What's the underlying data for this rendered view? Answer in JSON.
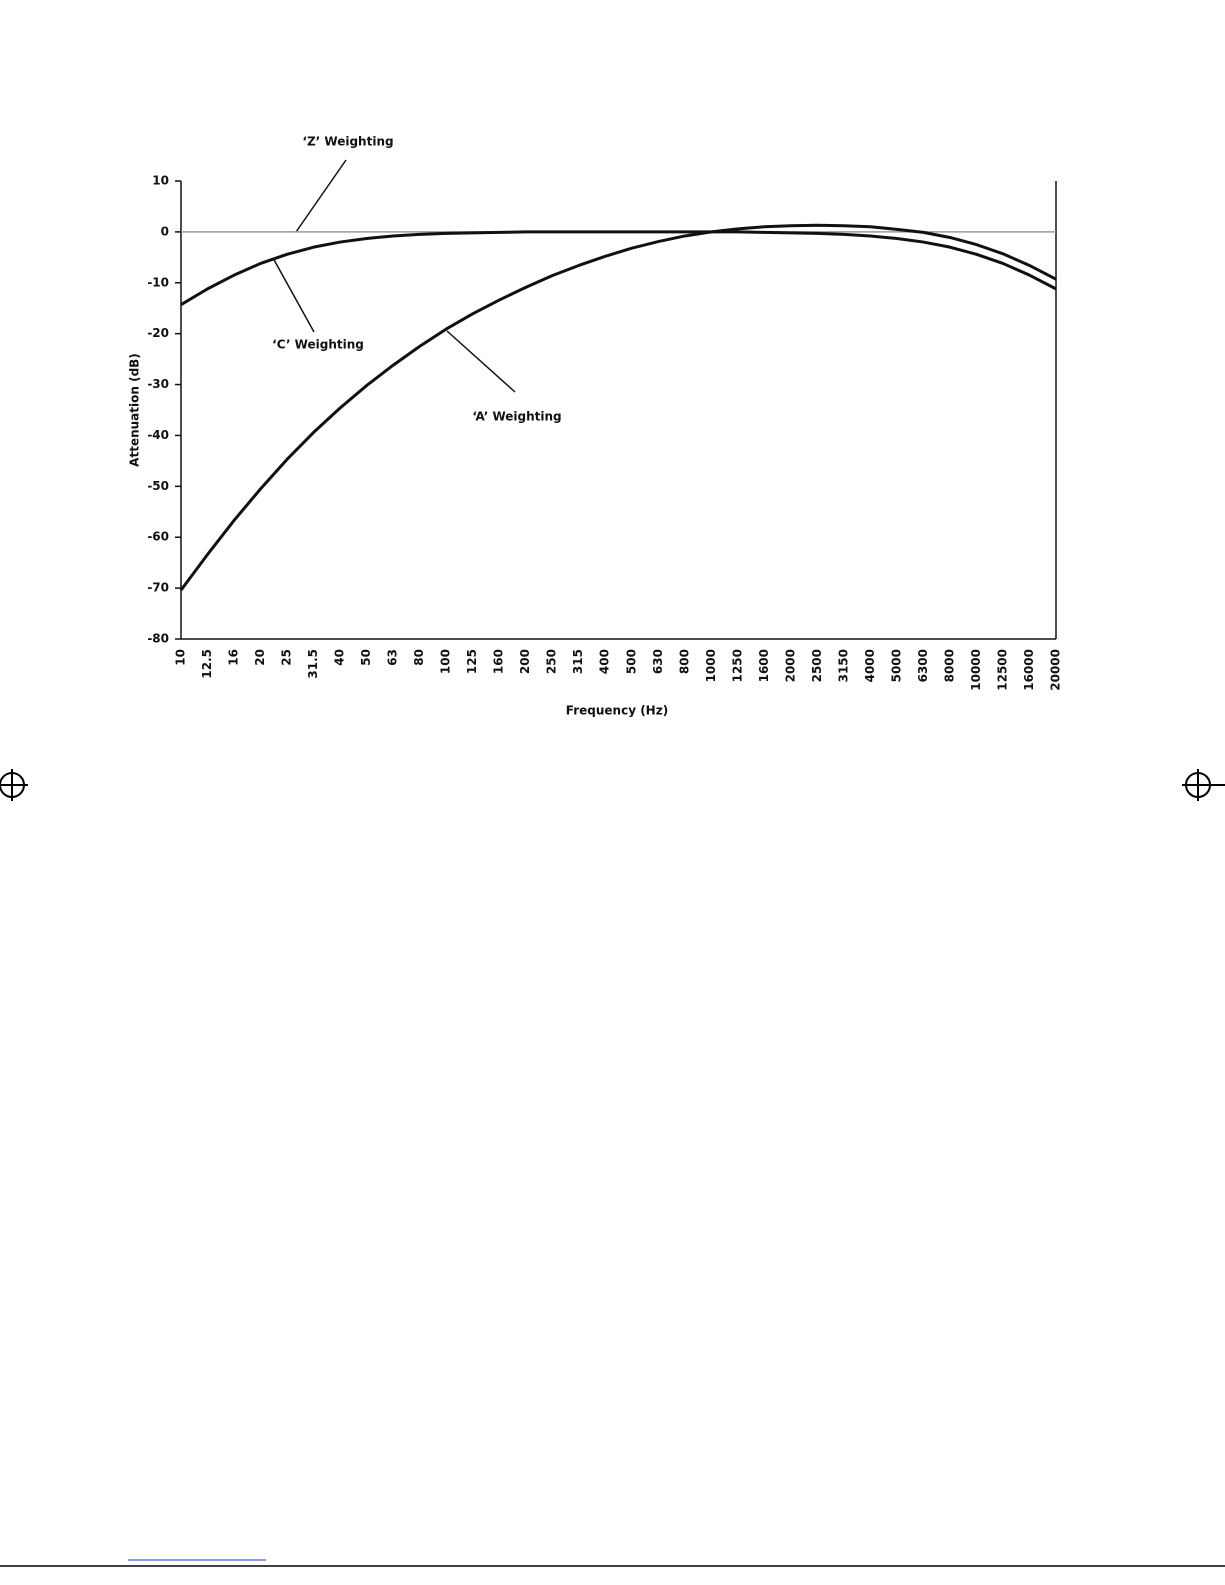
{
  "chart_data": {
    "type": "line",
    "y_label": "Attenuation (dB)",
    "x_label": "Frequency (Hz)",
    "categories": [
      "10",
      "12.5",
      "16",
      "20",
      "25",
      "31.5",
      "40",
      "50",
      "63",
      "80",
      "100",
      "125",
      "160",
      "200",
      "250",
      "315",
      "400",
      "500",
      "630",
      "800",
      "1000",
      "1250",
      "1600",
      "2000",
      "2500",
      "3150",
      "4000",
      "5000",
      "6300",
      "8000",
      "10000",
      "12500",
      "16000",
      "20000"
    ],
    "series": [
      {
        "name": "‘A’ Weighting",
        "color": "#111111",
        "values": [
          -70.4,
          -63.4,
          -56.7,
          -50.5,
          -44.7,
          -39.4,
          -34.6,
          -30.2,
          -26.2,
          -22.5,
          -19.1,
          -16.1,
          -13.4,
          -10.9,
          -8.6,
          -6.6,
          -4.8,
          -3.2,
          -1.9,
          -0.8,
          0,
          0.6,
          1.0,
          1.2,
          1.3,
          1.2,
          1.0,
          0.5,
          -0.1,
          -1.1,
          -2.5,
          -4.3,
          -6.6,
          -9.3
        ]
      },
      {
        "name": "‘C’ Weighting",
        "color": "#111111",
        "values": [
          -14.3,
          -11.2,
          -8.5,
          -6.2,
          -4.4,
          -3.0,
          -2.0,
          -1.3,
          -0.8,
          -0.5,
          -0.3,
          -0.2,
          -0.1,
          0,
          0,
          0,
          0,
          0,
          0,
          0,
          0,
          0,
          -0.1,
          -0.2,
          -0.3,
          -0.5,
          -0.8,
          -1.3,
          -2.0,
          -3.0,
          -4.4,
          -6.2,
          -8.5,
          -11.2
        ]
      },
      {
        "name": "‘Z’ Weighting",
        "color": "#999999",
        "values": [
          0,
          0,
          0,
          0,
          0,
          0,
          0,
          0,
          0,
          0,
          0,
          0,
          0,
          0,
          0,
          0,
          0,
          0,
          0,
          0,
          0,
          0,
          0,
          0,
          0,
          0,
          0,
          0,
          0,
          0,
          0,
          0,
          0,
          0
        ]
      }
    ],
    "ylim": [
      -80,
      10
    ],
    "yticks": [
      10,
      0,
      -10,
      -20,
      -30,
      -40,
      -50,
      -60,
      -70,
      -80
    ]
  }
}
